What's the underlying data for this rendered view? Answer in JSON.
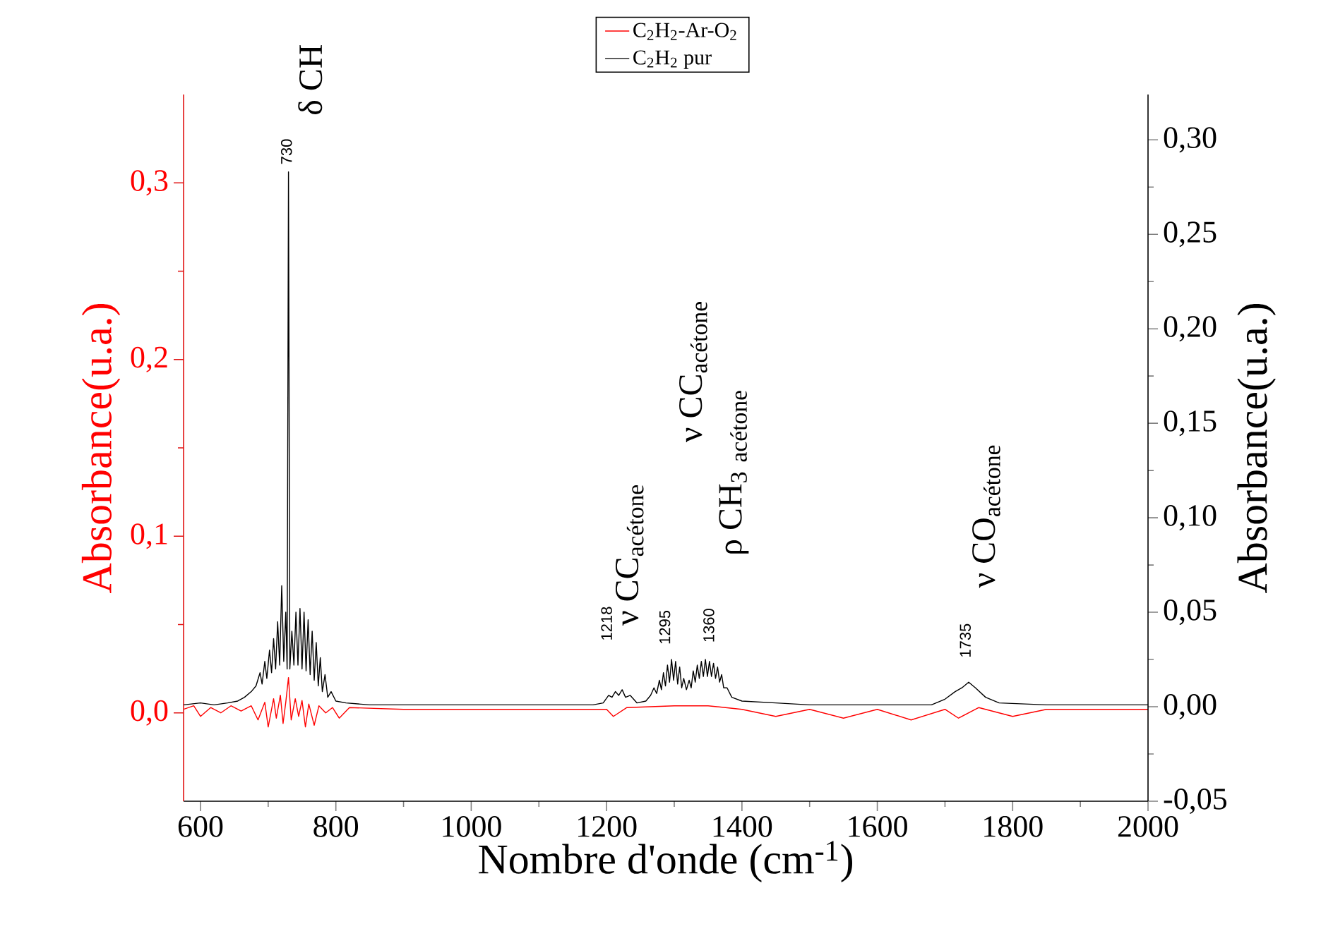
{
  "chart_data": {
    "type": "line",
    "xlabel": "Nombre d'onde (cm$^{-1}$)",
    "ylabel": "Absorbance(u.a.)",
    "y2label": "Absorbance(u.a.)",
    "xlim": [
      575,
      2000
    ],
    "xticks": [
      600,
      800,
      1000,
      1200,
      1400,
      1600,
      1800,
      2000
    ],
    "ylim": [
      -0.05,
      0.35
    ],
    "yticks": [
      {
        "value": 0,
        "label": "0,0"
      },
      {
        "value": 0.1,
        "label": "0,1"
      },
      {
        "value": 0.2,
        "label": "0,2"
      },
      {
        "value": 0.3,
        "label": "0,3"
      }
    ],
    "y2lim": [
      -0.05,
      0.324
    ],
    "y2ticks": [
      {
        "value": -0.05,
        "label": "-0,05"
      },
      {
        "value": 0,
        "label": "0,00"
      },
      {
        "value": 0.05,
        "label": "0,05"
      },
      {
        "value": 0.1,
        "label": "0,10"
      },
      {
        "value": 0.15,
        "label": "0,15"
      },
      {
        "value": 0.2,
        "label": "0,20"
      },
      {
        "value": 0.25,
        "label": "0,25"
      },
      {
        "value": 0.3,
        "label": "0,30"
      }
    ],
    "legend": "top",
    "series": [
      {
        "name": "C$_{2}$H$_{2}$-Ar-O$_{2}$",
        "color": "#ff0000",
        "axis": "y",
        "x": [
          575,
          590,
          600,
          615,
          630,
          645,
          660,
          675,
          685,
          695,
          700,
          708,
          712,
          718,
          722,
          726,
          730,
          734,
          740,
          745,
          750,
          755,
          760,
          768,
          775,
          785,
          795,
          805,
          820,
          900,
          1000,
          1100,
          1200,
          1210,
          1230,
          1300,
          1350,
          1400,
          1450,
          1500,
          1550,
          1600,
          1650,
          1700,
          1720,
          1750,
          1800,
          1850,
          1950,
          2000
        ],
        "values": [
          0.002,
          0.004,
          -0.002,
          0.003,
          0.0,
          0.004,
          0.001,
          0.004,
          -0.004,
          0.006,
          -0.008,
          0.008,
          -0.003,
          0.01,
          -0.006,
          0.006,
          0.02,
          -0.004,
          0.008,
          -0.002,
          0.007,
          -0.008,
          0.005,
          -0.007,
          0.004,
          0.0,
          0.003,
          -0.003,
          0.003,
          0.002,
          0.002,
          0.002,
          0.002,
          -0.002,
          0.003,
          0.004,
          0.004,
          0.002,
          -0.002,
          0.002,
          -0.003,
          0.002,
          -0.004,
          0.002,
          -0.003,
          0.003,
          -0.002,
          0.002,
          0.002,
          0.002
        ]
      },
      {
        "name": "C$_{2}$H$_{2}$ pur",
        "color": "#000000",
        "axis": "y2",
        "x": [
          575,
          600,
          620,
          640,
          655,
          665,
          675,
          682,
          688,
          691,
          695,
          698,
          702,
          705,
          708,
          711,
          714,
          717,
          720,
          723,
          726,
          728,
          730,
          732,
          735,
          738,
          741,
          744,
          747,
          750,
          753,
          756,
          759,
          762,
          765,
          768,
          771,
          774,
          777,
          780,
          784,
          788,
          793,
          800,
          815,
          850,
          900,
          1000,
          1100,
          1180,
          1195,
          1203,
          1208,
          1213,
          1218,
          1223,
          1228,
          1235,
          1245,
          1258,
          1265,
          1270,
          1274,
          1278,
          1281,
          1284,
          1287,
          1290,
          1293,
          1296,
          1299,
          1302,
          1305,
          1308,
          1311,
          1314,
          1318,
          1322,
          1325,
          1328,
          1331,
          1334,
          1337,
          1340,
          1343,
          1346,
          1349,
          1352,
          1355,
          1358,
          1361,
          1364,
          1367,
          1370,
          1373,
          1378,
          1385,
          1400,
          1450,
          1500,
          1600,
          1680,
          1700,
          1715,
          1725,
          1735,
          1745,
          1760,
          1780,
          1850,
          1950,
          2000
        ],
        "values": [
          0.001,
          0.002,
          0.001,
          0.002,
          0.003,
          0.005,
          0.008,
          0.011,
          0.018,
          0.012,
          0.024,
          0.015,
          0.03,
          0.018,
          0.036,
          0.02,
          0.045,
          0.022,
          0.064,
          0.024,
          0.05,
          0.02,
          0.283,
          0.02,
          0.04,
          0.022,
          0.05,
          0.022,
          0.052,
          0.02,
          0.05,
          0.019,
          0.046,
          0.017,
          0.04,
          0.014,
          0.034,
          0.011,
          0.026,
          0.008,
          0.017,
          0.005,
          0.008,
          0.003,
          0.002,
          0.001,
          0.001,
          0.001,
          0.001,
          0.001,
          0.002,
          0.006,
          0.005,
          0.008,
          0.006,
          0.009,
          0.005,
          0.006,
          0.002,
          0.003,
          0.006,
          0.01,
          0.007,
          0.014,
          0.009,
          0.018,
          0.011,
          0.022,
          0.013,
          0.025,
          0.014,
          0.024,
          0.012,
          0.021,
          0.01,
          0.015,
          0.009,
          0.014,
          0.01,
          0.019,
          0.013,
          0.022,
          0.015,
          0.024,
          0.016,
          0.025,
          0.016,
          0.024,
          0.016,
          0.023,
          0.015,
          0.021,
          0.013,
          0.017,
          0.01,
          0.01,
          0.005,
          0.003,
          0.002,
          0.001,
          0.001,
          0.001,
          0.004,
          0.008,
          0.01,
          0.013,
          0.01,
          0.005,
          0.002,
          0.001,
          0.001,
          0.001
        ]
      }
    ],
    "annotations": [
      "730",
      "δ CH",
      "1218",
      "ν CC$_{acétone}$",
      "1295",
      "ν CC$_{acétone}$",
      "1360",
      "ρ CH$_{3}$ $_{acétone}$",
      "1735",
      "ν CO$_{acétone}$"
    ]
  }
}
